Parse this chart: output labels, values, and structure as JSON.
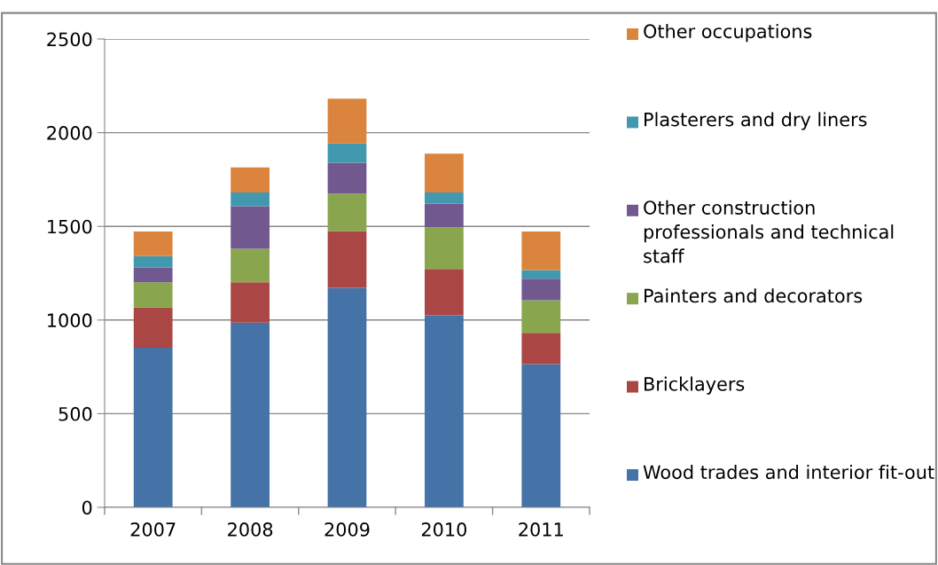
{
  "chart_data": {
    "type": "bar",
    "stacked": true,
    "categories": [
      "2007",
      "2008",
      "2009",
      "2010",
      "2011"
    ],
    "series": [
      {
        "name": "Wood trades and interior fit-out",
        "color": "#4572a7",
        "values": [
          852,
          986,
          1172,
          1025,
          765
        ]
      },
      {
        "name": "Bricklayers",
        "color": "#aa4643",
        "values": [
          214,
          215,
          303,
          247,
          167
        ]
      },
      {
        "name": "Painters and decorators",
        "color": "#89a54e",
        "values": [
          135,
          179,
          200,
          223,
          174
        ]
      },
      {
        "name": "Other construction professionals and technical staff",
        "color": "#71588f",
        "values": [
          79,
          227,
          165,
          127,
          114
        ]
      },
      {
        "name": "Plasterers and dry liners",
        "color": "#4198af",
        "values": [
          61,
          74,
          102,
          59,
          47
        ]
      },
      {
        "name": "Other occupations",
        "color": "#db843d",
        "values": [
          132,
          134,
          240,
          207,
          206
        ]
      }
    ],
    "ylim": [
      0,
      2500
    ],
    "yticks": [
      0,
      500,
      1000,
      1500,
      2000,
      2500
    ],
    "grid": "y",
    "legend": "right"
  }
}
